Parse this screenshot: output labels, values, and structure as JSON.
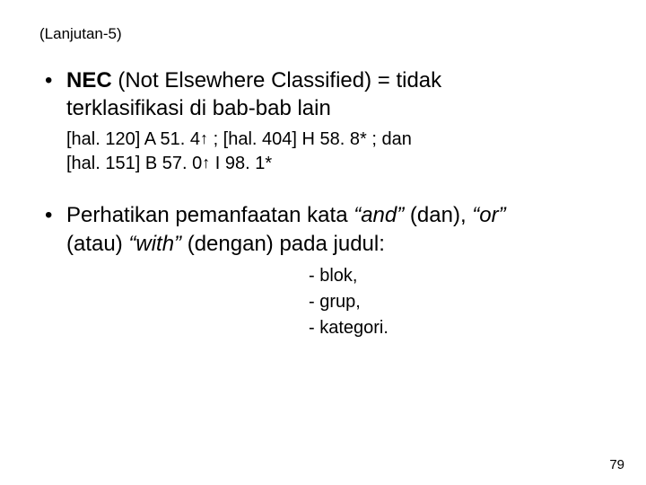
{
  "header": "(Lanjutan-5)",
  "bullet1": {
    "nec_label": "NEC",
    "rest_line1": " (Not Elsewhere Classified) = tidak",
    "line2": "terklasifikasi di bab-bab lain"
  },
  "sub_lines": {
    "l1_a": "[hal. 120]  A 51. 4",
    "l1_b": " ;    [hal. 404]  H 58. 8* ;   dan",
    "l2_a": "[hal. 151]  B 57. 0",
    "l2_b": " I 98. 1*"
  },
  "bullet2": {
    "pre": "Perhatikan pemanfaatan kata  ",
    "and_it": "“and”",
    "and_plain": " (dan), ",
    "or_it": "“or”",
    "line2_pre": "(atau) ",
    "with_it": "“with”",
    "line2_post": " (dengan) pada judul:"
  },
  "dashes": {
    "d1": "-  blok,",
    "d2": "-  grup,",
    "d3": "-  kategori."
  },
  "arrow_glyph": "↑",
  "page_number": "79",
  "colors": {
    "text": "#000000",
    "background": "#ffffff"
  },
  "typography": {
    "header_fontsize": 17,
    "bullet_fontsize": 24,
    "sub_fontsize": 20,
    "pagenum_fontsize": 15,
    "font_family": "Arial"
  }
}
